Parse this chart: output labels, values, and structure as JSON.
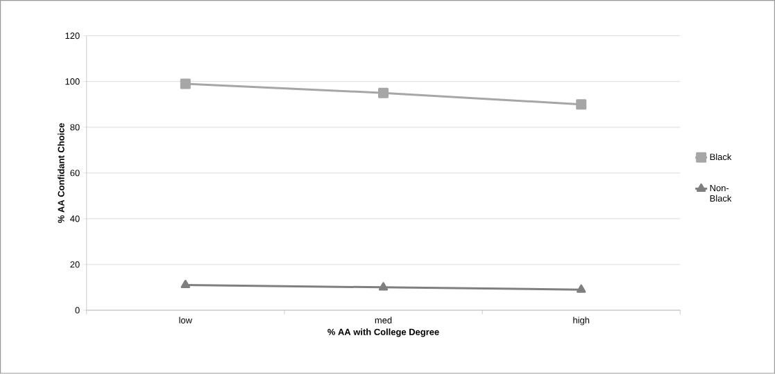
{
  "chart_data": {
    "type": "line",
    "xlabel": "% AA with College Degree",
    "ylabel": "% AA Confidant Choice",
    "categories": [
      "low",
      "med",
      "high"
    ],
    "series": [
      {
        "name": "Black",
        "color": "#a6a6a6",
        "marker": "square",
        "values": [
          99,
          95,
          90
        ]
      },
      {
        "name": "Non-Black",
        "color": "#7f7f7f",
        "marker": "triangle",
        "values": [
          11,
          10,
          9
        ]
      }
    ],
    "ylim": [
      0,
      120
    ],
    "yticks": [
      0,
      20,
      40,
      60,
      80,
      100,
      120
    ],
    "grid": "y",
    "legend": "right"
  }
}
